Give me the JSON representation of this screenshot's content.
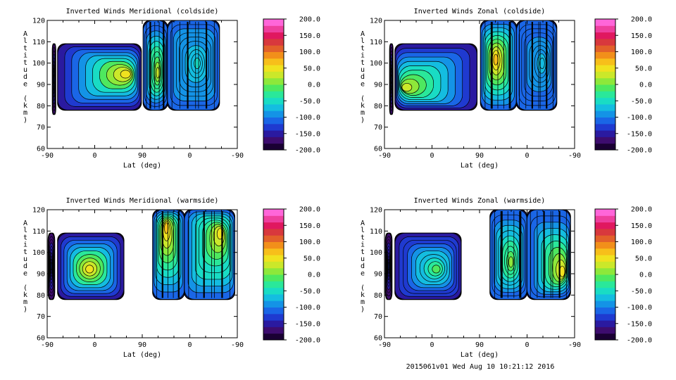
{
  "footer": "2015061v01 Wed Aug 10 10:21:12 2016",
  "colorbar": {
    "tick_labels": [
      "200.0",
      "150.0",
      "100.0",
      "50.0",
      "0.0",
      "-50.0",
      "-100.0",
      "-150.0",
      "-200.0"
    ],
    "tick_values": [
      200,
      150,
      100,
      50,
      0,
      -50,
      -100,
      -150,
      -200
    ],
    "min": -200,
    "max": 200,
    "colors": [
      "#1a0033",
      "#3d0c6e",
      "#2a1aa0",
      "#1f3ad0",
      "#1a66e6",
      "#1493e6",
      "#14bde0",
      "#19dcc4",
      "#2ae89a",
      "#4ee85f",
      "#8ee83a",
      "#cbe82a",
      "#f0e21f",
      "#f7bf1a",
      "#f28f1a",
      "#e2602a",
      "#d8383d",
      "#e0185f",
      "#ee3f9e",
      "#ff66d9"
    ]
  },
  "chart_data": [
    {
      "type": "heatmap",
      "title": "Inverted Winds Meridional (coldside)",
      "xlabel": "Lat (deg)",
      "ylabel": "Altitude (km)",
      "x_tick_labels": [
        "-90",
        "0",
        "90",
        "0",
        "-90"
      ],
      "y_tick_labels": [
        "60",
        "70",
        "80",
        "90",
        "100",
        "110",
        "120"
      ],
      "ylim": [
        60,
        120
      ],
      "colorbar_range": [
        -200,
        200
      ],
      "regions": [
        {
          "x": [
            -80,
            -74
          ],
          "y": [
            76,
            109
          ],
          "edge": -170,
          "peak": -130
        },
        {
          "x": [
            -70,
            88
          ],
          "y": [
            78,
            109
          ],
          "edge": -150,
          "peak": 45,
          "peak_at": [
            65,
            95
          ]
        },
        {
          "x": [
            92,
            138
          ],
          "y": [
            78,
            120
          ],
          "edge": -120,
          "peak": 25,
          "peak_at": [
            120,
            95
          ]
        },
        {
          "x": [
            138,
            236
          ],
          "y": [
            78,
            120
          ],
          "edge": -110,
          "peak": -60,
          "peak_at": [
            195,
            100
          ]
        }
      ]
    },
    {
      "type": "heatmap",
      "title": "Inverted Winds Zonal (coldside)",
      "xlabel": "Lat (deg)",
      "ylabel": "Altitude (km)",
      "x_tick_labels": [
        "-90",
        "0",
        "90",
        "0",
        "-90"
      ],
      "y_tick_labels": [
        "60",
        "70",
        "80",
        "90",
        "100",
        "110",
        "120"
      ],
      "ylim": [
        60,
        120
      ],
      "colorbar_range": [
        -200,
        200
      ],
      "regions": [
        {
          "x": [
            -80,
            -74
          ],
          "y": [
            76,
            109
          ],
          "edge": -170,
          "peak": -130
        },
        {
          "x": [
            -70,
            85
          ],
          "y": [
            78,
            109
          ],
          "edge": -150,
          "peak": 35,
          "peak_at": [
            -55,
            88
          ]
        },
        {
          "x": [
            92,
            160
          ],
          "y": [
            78,
            120
          ],
          "edge": -110,
          "peak": 60,
          "peak_at": [
            120,
            102
          ]
        },
        {
          "x": [
            160,
            236
          ],
          "y": [
            78,
            120
          ],
          "edge": -120,
          "peak": -70,
          "peak_at": [
            210,
            100
          ]
        }
      ]
    },
    {
      "type": "heatmap",
      "title": "Inverted Winds Meridional (warmside)",
      "xlabel": "Lat (deg)",
      "ylabel": "Altitude (km)",
      "x_tick_labels": [
        "-90",
        "0",
        "90",
        "0",
        "-90"
      ],
      "y_tick_labels": [
        "60",
        "70",
        "80",
        "90",
        "100",
        "110",
        "120"
      ],
      "ylim": [
        60,
        120
      ],
      "colorbar_range": [
        -200,
        200
      ],
      "regions": [
        {
          "x": [
            -88,
            -76
          ],
          "y": [
            78,
            109
          ],
          "edge": -170,
          "peak": -140
        },
        {
          "x": [
            -70,
            55
          ],
          "y": [
            78,
            109
          ],
          "edge": -150,
          "peak": 50,
          "peak_at": [
            -10,
            92
          ]
        },
        {
          "x": [
            110,
            170
          ],
          "y": [
            78,
            120
          ],
          "edge": -110,
          "peak": 65,
          "peak_at": [
            135,
            113
          ]
        },
        {
          "x": [
            170,
            265
          ],
          "y": [
            78,
            120
          ],
          "edge": -110,
          "peak": 40,
          "peak_at": [
            240,
            110
          ]
        }
      ]
    },
    {
      "type": "heatmap",
      "title": "Inverted Winds Zonal (warmside)",
      "xlabel": "Lat (deg)",
      "ylabel": "Altitude (km)",
      "x_tick_labels": [
        "-90",
        "0",
        "90",
        "0",
        "-90"
      ],
      "y_tick_labels": [
        "60",
        "70",
        "80",
        "90",
        "100",
        "110",
        "120"
      ],
      "ylim": [
        60,
        120
      ],
      "colorbar_range": [
        -200,
        200
      ],
      "regions": [
        {
          "x": [
            -88,
            -76
          ],
          "y": [
            78,
            109
          ],
          "edge": -170,
          "peak": -140
        },
        {
          "x": [
            -70,
            55
          ],
          "y": [
            78,
            109
          ],
          "edge": -150,
          "peak": -20,
          "peak_at": [
            10,
            92
          ]
        },
        {
          "x": [
            110,
            180
          ],
          "y": [
            78,
            120
          ],
          "edge": -120,
          "peak": 0,
          "peak_at": [
            150,
            95
          ]
        },
        {
          "x": [
            180,
            262
          ],
          "y": [
            78,
            120
          ],
          "edge": -120,
          "peak": 45,
          "peak_at": [
            250,
            90
          ]
        }
      ]
    }
  ]
}
